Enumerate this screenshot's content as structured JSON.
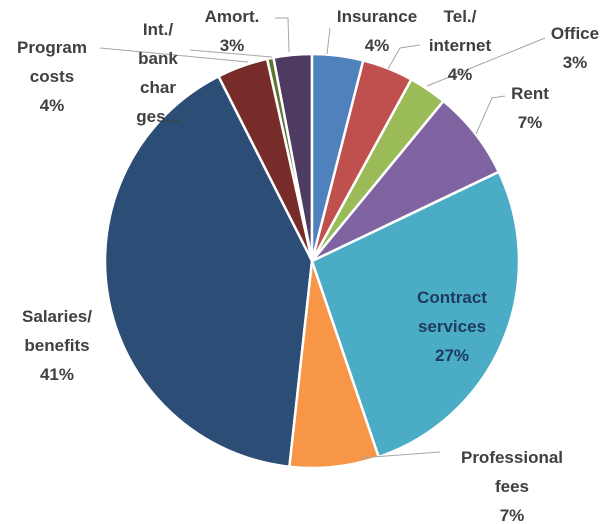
{
  "chart_data": {
    "type": "pie",
    "categories": [
      "Insurance",
      "Tel./\ninternet",
      "Office",
      "Rent",
      "Contract\nservices",
      "Professional\nfees",
      "Salaries/\nbenefits",
      "Program\ncosts",
      "Int./\nbank\nchar\nges...",
      "Amort."
    ],
    "values": [
      4,
      4,
      3,
      7,
      27,
      7,
      41,
      4,
      0.5,
      3
    ],
    "value_labels": [
      "4%",
      "4%",
      "3%",
      "7%",
      "27%",
      "7%",
      "41%",
      "4%",
      null,
      "3%"
    ],
    "colors": [
      "#4f81bd",
      "#c0504d",
      "#9bbb59",
      "#8064a2",
      "#4bacc6",
      "#f79646",
      "#2c4d75",
      "#772c2a",
      "#5f7530",
      "#4d3b62"
    ]
  }
}
